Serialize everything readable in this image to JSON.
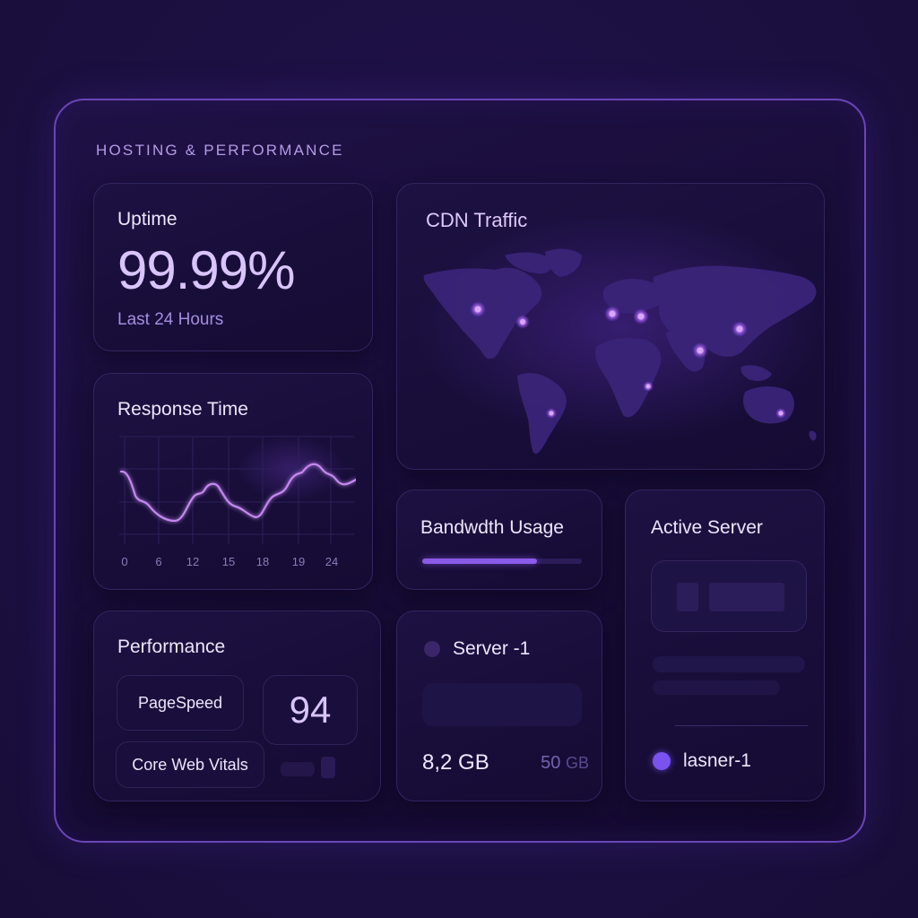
{
  "section": {
    "title": "HOSTING & PERFORMANCE"
  },
  "uptime": {
    "title": "Uptime",
    "value": "99.99%",
    "subtitle": "Last 24 Hours"
  },
  "response_time": {
    "title": "Response Time",
    "x_ticks": [
      "0",
      "6",
      "12",
      "15",
      "18",
      "19",
      "24"
    ]
  },
  "performance": {
    "title": "Performance",
    "pagespeed_label": "PageSpeed",
    "core_web_vitals_label": "Core Web Vitals",
    "score": "94"
  },
  "cdn": {
    "title": "CDN Traffic",
    "map_icon": "world-map",
    "nodes": [
      "north-america-west",
      "north-america-east",
      "europe-west",
      "europe-east",
      "asia-east",
      "asia-south",
      "africa-east",
      "south-america",
      "australia"
    ]
  },
  "bandwidth": {
    "title": "Bandwdth Usage",
    "fill_percent": 72
  },
  "server": {
    "name": "Server -1",
    "used": "8,2 GB",
    "total_value": "50",
    "total_unit": "GB"
  },
  "active_server": {
    "title": "Active Server",
    "name": "lasner-1"
  },
  "colors": {
    "accent": "#8a5ae8",
    "frame_border": "#6a45b8",
    "background": "#1c1042",
    "active_dot": "#7a52f0",
    "line": "#c488f0"
  },
  "chart_data": {
    "type": "line",
    "title": "Response Time",
    "categories": [
      "0",
      "6",
      "12",
      "15",
      "18",
      "19",
      "24"
    ],
    "x": [
      0,
      2,
      4,
      6,
      8,
      10,
      12,
      13,
      14,
      15,
      16,
      17,
      18,
      19,
      20,
      21,
      22,
      23,
      24,
      25
    ],
    "values": [
      62,
      30,
      18,
      10,
      14,
      38,
      48,
      43,
      26,
      22,
      12,
      32,
      44,
      58,
      65,
      60,
      52,
      46,
      50,
      54
    ],
    "xlabel": "",
    "ylabel": "",
    "grid": true
  }
}
